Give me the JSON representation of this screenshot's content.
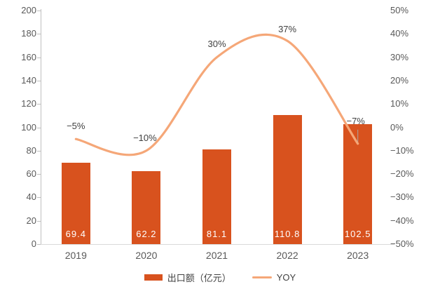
{
  "colors": {
    "bar": "#d8521e",
    "line": "#f5a778",
    "axis_text": "#595959",
    "line_label_text": "#404040",
    "bar_label_text": "#ffffff",
    "axis_line": "#bfbfbf",
    "baseline": "#d9d9d9",
    "leader_line": "#a6a6a6"
  },
  "legend": {
    "bar_label": "出口额（亿元）",
    "line_label": "YOY"
  },
  "chart_data": {
    "type": "combo",
    "categories": [
      "2019",
      "2020",
      "2021",
      "2022",
      "2023"
    ],
    "series": [
      {
        "name": "出口额（亿元）",
        "type": "bar",
        "axis": "left",
        "values": [
          69.4,
          62.2,
          81.1,
          110.8,
          102.5
        ],
        "labels": [
          "69.4",
          "62.2",
          "81.1",
          "110.8",
          "102.5"
        ]
      },
      {
        "name": "YOY",
        "type": "line",
        "axis": "right",
        "values": [
          -5,
          -10,
          30,
          37,
          -7
        ],
        "labels": [
          "−5%",
          "−10%",
          "30%",
          "37%",
          "−7%"
        ]
      }
    ],
    "left_axis": {
      "min": 0,
      "max": 200,
      "step": 20,
      "ticks": [
        "0",
        "20",
        "40",
        "60",
        "80",
        "100",
        "120",
        "140",
        "160",
        "180",
        "200"
      ]
    },
    "right_axis": {
      "min": -50,
      "max": 50,
      "step": 10,
      "ticks": [
        "50%",
        "40%",
        "30%",
        "20%",
        "10%",
        "0%",
        "−10%",
        "−20%",
        "−30%",
        "−40%",
        "−50%"
      ]
    },
    "grid": false,
    "legend_position": "bottom",
    "line_smooth": true
  }
}
